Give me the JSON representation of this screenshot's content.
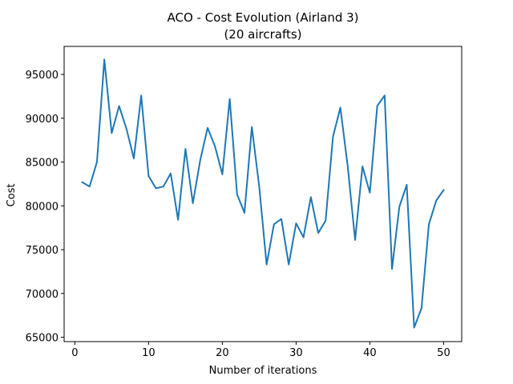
{
  "chart_data": {
    "type": "line",
    "title": "ACO - Cost Evolution (Airland 3)",
    "subtitle": "(20 aircrafts)",
    "xlabel": "Number of iterations",
    "ylabel": "Cost",
    "xlim": [
      -1.45,
      52.45
    ],
    "ylim": [
      64500,
      98200
    ],
    "x_ticks": [
      0,
      10,
      20,
      30,
      40,
      50
    ],
    "y_ticks": [
      65000,
      70000,
      75000,
      80000,
      85000,
      90000,
      95000
    ],
    "x_tick_labels": [
      "0",
      "10",
      "20",
      "30",
      "40",
      "50"
    ],
    "y_tick_labels": [
      "65000",
      "70000",
      "75000",
      "80000",
      "85000",
      "90000",
      "95000"
    ],
    "grid": false,
    "line_color": "#1f77b4",
    "series": [
      {
        "x": [
          1,
          2,
          3,
          4,
          5,
          6,
          7,
          8,
          9,
          10,
          11,
          12,
          13,
          14,
          15,
          16,
          17,
          18,
          19,
          20,
          21,
          22,
          23,
          24,
          25,
          26,
          27,
          28,
          29,
          30,
          31,
          32,
          33,
          34,
          35,
          36,
          37,
          38,
          39,
          40,
          41,
          42,
          43,
          44,
          45,
          46,
          47,
          48,
          49,
          50
        ],
        "values": [
          82700,
          82200,
          85000,
          96700,
          88300,
          91400,
          88800,
          85400,
          92600,
          83400,
          82000,
          82200,
          83700,
          78400,
          86500,
          80300,
          85200,
          88900,
          86800,
          83600,
          92200,
          81300,
          79200,
          89000,
          82200,
          73300,
          77900,
          78500,
          73300,
          78000,
          76400,
          81000,
          76900,
          78300,
          87900,
          91200,
          84500,
          76100,
          84500,
          81500,
          91400,
          92600,
          72800,
          79900,
          82400,
          66100,
          68300,
          77900,
          80600,
          81800
        ]
      }
    ]
  }
}
